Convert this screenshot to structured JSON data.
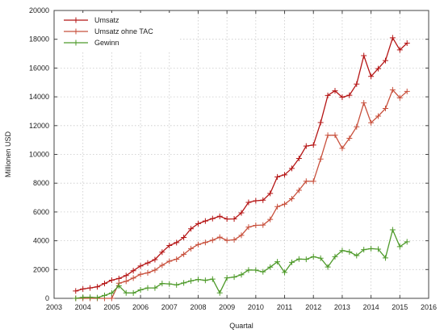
{
  "chart_data": {
    "type": "line",
    "xlabel": "Quartal",
    "ylabel": "Millionen USD",
    "xlim": [
      2003,
      2016
    ],
    "ylim": [
      0,
      20000
    ],
    "xticks": [
      "2003",
      "2004",
      "2005",
      "2006",
      "2007",
      "2008",
      "2009",
      "2010",
      "2011",
      "2012",
      "2013",
      "2014",
      "2015",
      "2016"
    ],
    "yticks": [
      "0",
      "2000",
      "4000",
      "6000",
      "8000",
      "10000",
      "12000",
      "14000",
      "16000",
      "18000",
      "20000"
    ],
    "grid": true,
    "legend_position": "top-left",
    "colors": {
      "Umsatz": "#b51515",
      "Umsatz ohne TAC": "#c8503c",
      "Gewinn": "#4e9a2a"
    },
    "x": [
      2003.75,
      2004.0,
      2004.25,
      2004.5,
      2004.75,
      2005.0,
      2005.25,
      2005.5,
      2005.75,
      2006.0,
      2006.25,
      2006.5,
      2006.75,
      2007.0,
      2007.25,
      2007.5,
      2007.75,
      2008.0,
      2008.25,
      2008.5,
      2008.75,
      2009.0,
      2009.25,
      2009.5,
      2009.75,
      2010.0,
      2010.25,
      2010.5,
      2010.75,
      2011.0,
      2011.25,
      2011.5,
      2011.75,
      2012.0,
      2012.25,
      2012.5,
      2012.75,
      2013.0,
      2013.25,
      2013.5,
      2013.75,
      2014.0,
      2014.25,
      2014.5,
      2014.75,
      2015.0,
      2015.25
    ],
    "series": [
      {
        "name": "Umsatz",
        "values": [
          510,
          650,
          720,
          800,
          1030,
          1260,
          1380,
          1580,
          1920,
          2250,
          2460,
          2690,
          3210,
          3670,
          3870,
          4230,
          4830,
          5190,
          5370,
          5540,
          5700,
          5510,
          5520,
          5940,
          6670,
          6780,
          6820,
          7290,
          8440,
          8580,
          9030,
          9720,
          10580,
          10650,
          12210,
          14100,
          14420,
          13970,
          14110,
          14890,
          16860,
          15420,
          15960,
          16520,
          18100,
          17260,
          17730
        ]
      },
      {
        "name": "Umsatz ohne TAC",
        "values": [
          0,
          0,
          0,
          0,
          0,
          0,
          1050,
          1180,
          1410,
          1670,
          1770,
          1960,
          2300,
          2580,
          2720,
          3060,
          3450,
          3740,
          3880,
          4040,
          4250,
          4030,
          4070,
          4380,
          4950,
          5070,
          5090,
          5480,
          6370,
          6540,
          6920,
          7510,
          8140,
          8130,
          9680,
          11330,
          11340,
          10420,
          11120,
          11920,
          13580,
          12200,
          12660,
          13190,
          14490,
          13930,
          14380
        ]
      },
      {
        "name": "Gewinn",
        "values": [
          0,
          70,
          80,
          50,
          200,
          370,
          870,
          380,
          370,
          590,
          720,
          720,
          1030,
          1000,
          930,
          1070,
          1210,
          1310,
          1250,
          1340,
          380,
          1420,
          1480,
          1640,
          1970,
          1960,
          1840,
          2170,
          2540,
          1800,
          2500,
          2730,
          2710,
          2890,
          2790,
          2180,
          2890,
          3320,
          3230,
          2970,
          3380,
          3450,
          3420,
          2810,
          4760,
          3590,
          3930
        ]
      }
    ]
  }
}
